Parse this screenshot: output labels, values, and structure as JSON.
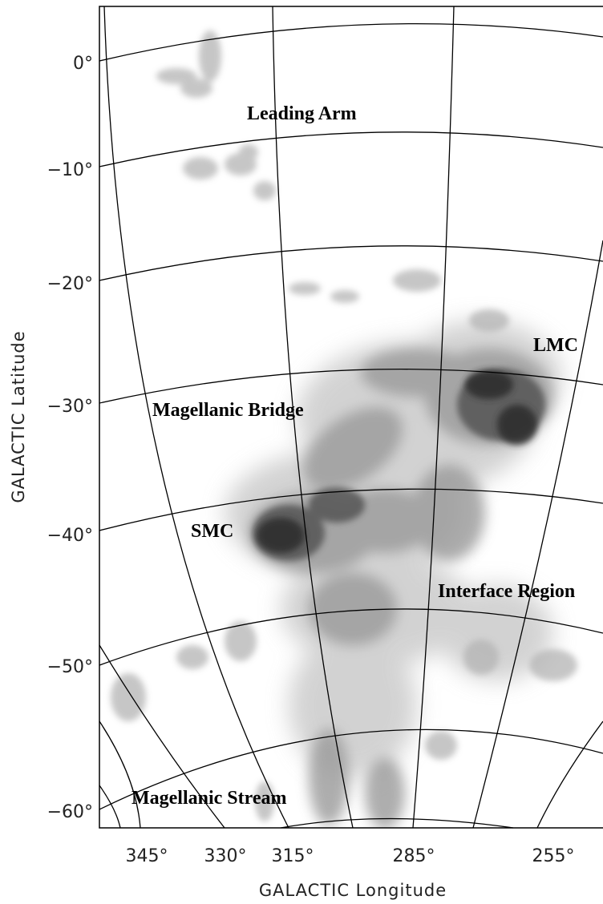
{
  "axes": {
    "x_label": "GALACTIC Longitude",
    "y_label": "GALACTIC Latitude",
    "x_ticks": [
      "345°",
      "330°",
      "315°",
      "285°",
      "255°"
    ],
    "y_ticks": [
      "0°",
      "−10°",
      "−20°",
      "−30°",
      "−40°",
      "−50°",
      "−60°"
    ]
  },
  "labels": {
    "leading_arm": "Leading Arm",
    "lmc": "LMC",
    "bridge": "Magellanic Bridge",
    "smc": "SMC",
    "interface": "Interface Region",
    "stream": "Magellanic Stream"
  }
}
